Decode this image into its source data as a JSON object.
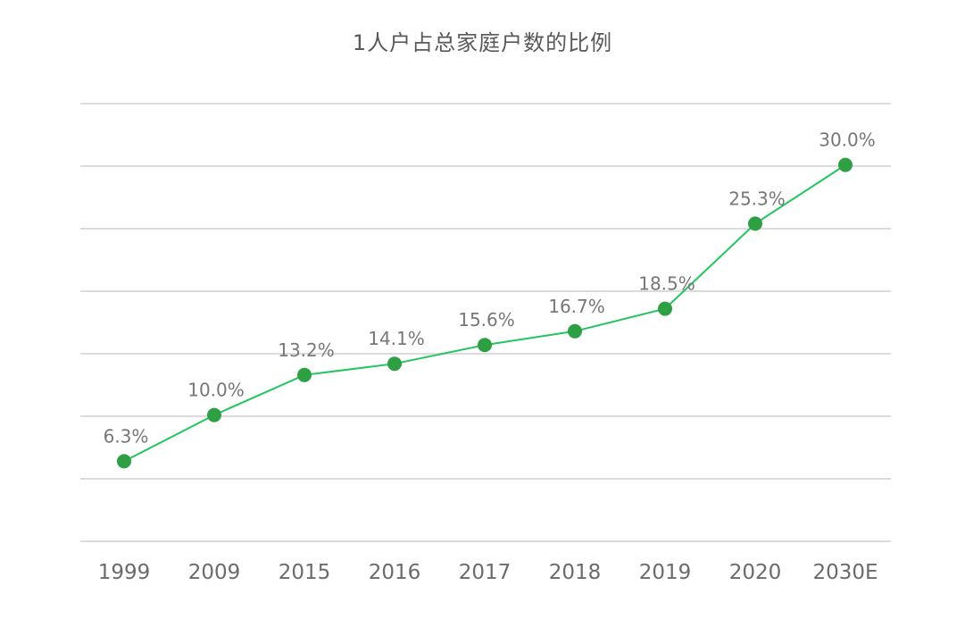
{
  "chart_data": {
    "type": "line",
    "title": "1人户占总家庭户数的比例",
    "categories": [
      "1999",
      "2009",
      "2015",
      "2016",
      "2017",
      "2018",
      "2019",
      "2020",
      "2030E"
    ],
    "series": [
      {
        "values": [
          6.3,
          10.0,
          13.2,
          14.1,
          15.6,
          16.7,
          18.5,
          25.3,
          30.0
        ],
        "labels": [
          "6.3%",
          "10.0%",
          "13.2%",
          "14.1%",
          "15.6%",
          "16.7%",
          "18.5%",
          "25.3%",
          "30.0%"
        ],
        "color": "#2ea043",
        "line_color": "#22c55e"
      }
    ],
    "xlabel": "",
    "ylabel": "",
    "ylim": [
      -0.1,
      34.9
    ],
    "grid_values": [
      -0.1,
      4.9,
      9.9,
      14.9,
      19.9,
      24.9,
      29.9,
      34.9
    ],
    "grid": true,
    "legend": "none"
  }
}
